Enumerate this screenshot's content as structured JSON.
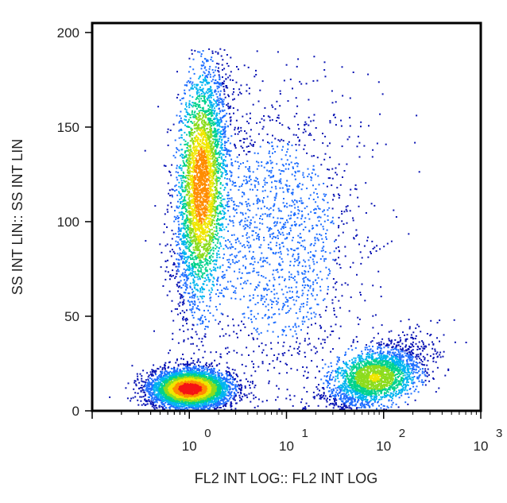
{
  "chart_data": {
    "type": "scatter",
    "style": "density-colored flow cytometry dot plot",
    "xlabel": "FL2 INT LOG:: FL2 INT LOG",
    "ylabel": "SS INT LIN:: SS INT LIN",
    "x_scale": "log",
    "xlim": [
      0.1,
      1000
    ],
    "x_ticks": [
      {
        "value": 1,
        "base": "10",
        "exp": "0"
      },
      {
        "value": 10,
        "base": "10",
        "exp": "1"
      },
      {
        "value": 100,
        "base": "10",
        "exp": "2"
      },
      {
        "value": 1000,
        "base": "10",
        "exp": "3"
      }
    ],
    "ylim": [
      0,
      205
    ],
    "y_ticks": [
      "0",
      "50",
      "100",
      "150",
      "200"
    ],
    "grid": false,
    "density_colors": [
      "#0a14b4",
      "#1e6eff",
      "#00b4f0",
      "#00d28c",
      "#8cdc1e",
      "#f0e600",
      "#ff8c00",
      "#f51414"
    ],
    "populations": [
      {
        "name": "",
        "x_center": 1.0,
        "y_center": 12,
        "x_spread_decades": 0.2,
        "y_spread": 5,
        "relative_density": 1.0
      },
      {
        "name": "",
        "x_center": 1.3,
        "y_center": 120,
        "x_spread_decades": 0.13,
        "y_spread": 32,
        "relative_density": 0.8
      },
      {
        "name": "",
        "x_center": 80,
        "y_center": 18,
        "x_spread_decades": 0.25,
        "y_spread": 8,
        "relative_density": 0.55
      },
      {
        "name": "",
        "x_center": 8,
        "y_center": 90,
        "x_spread_decades": 0.45,
        "y_spread": 40,
        "relative_density": 0.15
      }
    ]
  }
}
